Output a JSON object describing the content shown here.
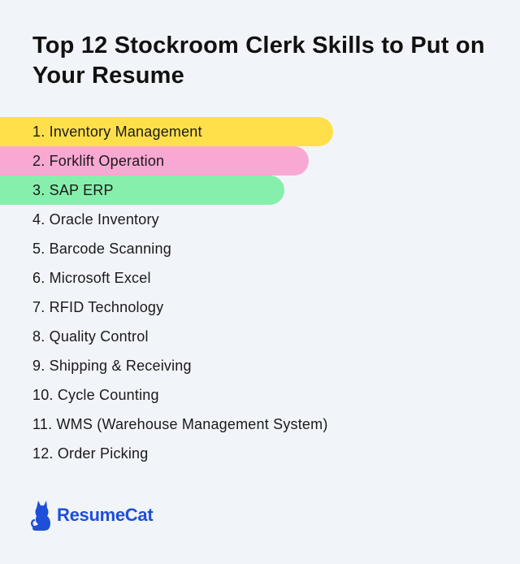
{
  "title": "Top 12 Stockroom Clerk Skills to Put on Your Resume",
  "skills": [
    {
      "label": "1. Inventory Management",
      "highlight": "#ffe04b"
    },
    {
      "label": "2. Forklift Operation",
      "highlight": "#f9a8d4"
    },
    {
      "label": "3. SAP ERP",
      "highlight": "#86efac"
    },
    {
      "label": "4. Oracle Inventory",
      "highlight": null
    },
    {
      "label": "5. Barcode Scanning",
      "highlight": null
    },
    {
      "label": "6. Microsoft Excel",
      "highlight": null
    },
    {
      "label": "7. RFID Technology",
      "highlight": null
    },
    {
      "label": "8. Quality Control",
      "highlight": null
    },
    {
      "label": "9. Shipping & Receiving",
      "highlight": null
    },
    {
      "label": "10. Cycle Counting",
      "highlight": null
    },
    {
      "label": "11. WMS (Warehouse Management System)",
      "highlight": null
    },
    {
      "label": "12. Order Picking",
      "highlight": null
    }
  ],
  "logo": {
    "text": "ResumeCat",
    "icon": "cat-icon",
    "color": "#1e4fd8"
  }
}
